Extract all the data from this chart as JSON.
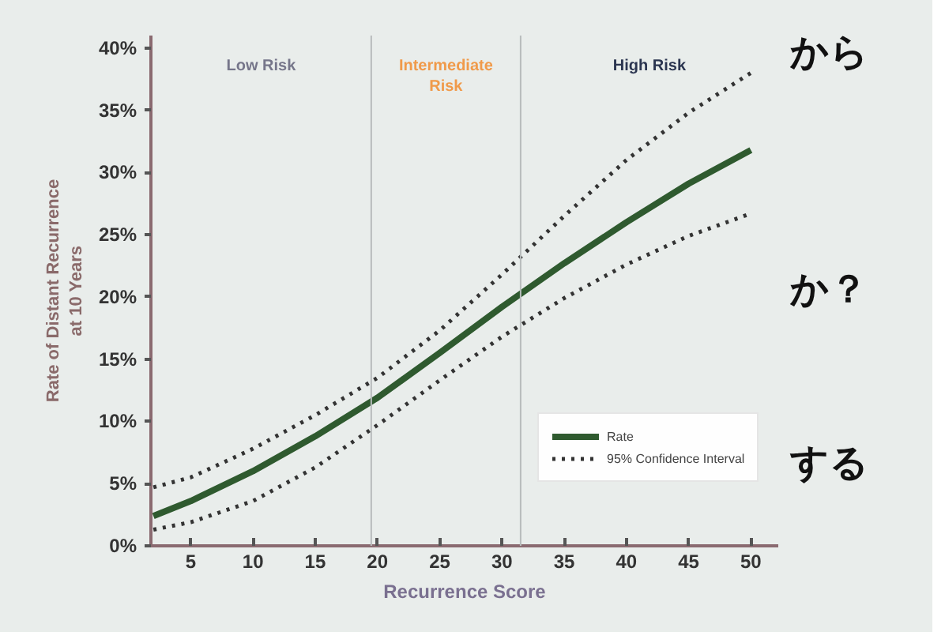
{
  "chart_data": {
    "type": "line",
    "xlabel": "Recurrence Score",
    "ylabel": "Rate of Distant Recurrence\nat 10 Years",
    "x": [
      2,
      5,
      10,
      15,
      20,
      25,
      30,
      35,
      40,
      45,
      50
    ],
    "series": [
      {
        "name": "Rate",
        "color": "#2f5a2f",
        "line_style": "solid",
        "values": [
          2.4,
          3.6,
          6.0,
          8.8,
          11.9,
          15.5,
          19.2,
          22.7,
          26.0,
          29.1,
          31.8
        ]
      },
      {
        "name": "95% Confidence Interval",
        "color": "#333333",
        "line_style": "dotted",
        "values": [
          4.7,
          5.5,
          7.8,
          10.5,
          13.5,
          17.3,
          21.8,
          26.5,
          31.0,
          34.8,
          38.0
        ]
      },
      {
        "color": "#333333",
        "line_style": "dotted",
        "values": [
          1.3,
          1.9,
          3.6,
          6.3,
          9.7,
          13.3,
          16.8,
          19.9,
          22.6,
          24.9,
          26.7
        ]
      }
    ],
    "xlim": [
      1.8,
      52.2
    ],
    "ylim": [
      0,
      41
    ],
    "xticks": [
      5,
      10,
      15,
      20,
      25,
      30,
      35,
      40,
      45,
      50
    ],
    "yticks": [
      {
        "value": 0,
        "label": "0%"
      },
      {
        "value": 5,
        "label": "5%"
      },
      {
        "value": 10,
        "label": "10%"
      },
      {
        "value": 15,
        "label": "15%"
      },
      {
        "value": 20,
        "label": "20%"
      },
      {
        "value": 25,
        "label": "25%"
      },
      {
        "value": 30,
        "label": "30%"
      },
      {
        "value": 35,
        "label": "35%"
      },
      {
        "value": 40,
        "label": "40%"
      }
    ],
    "ref_lines": [
      {
        "axis": "x",
        "value": 19.5,
        "color": "#b8bcbc"
      },
      {
        "axis": "x",
        "value": 31.5,
        "color": "#b8bcbc"
      }
    ],
    "annotations": [
      "Low Risk",
      "Intermediate\nRisk",
      "High Risk",
      "から",
      "か？",
      "する"
    ],
    "grid": false,
    "legend": "bottom right"
  }
}
